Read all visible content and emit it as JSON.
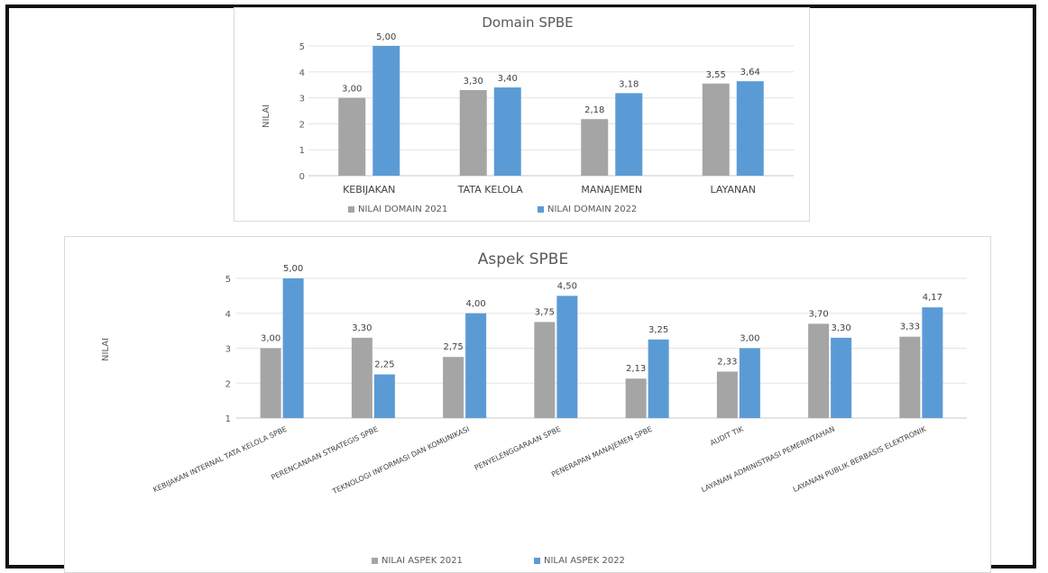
{
  "chart_data": [
    {
      "type": "bar",
      "title": "Domain SPBE",
      "ylabel": "NILAI",
      "xlabel": "",
      "ylim": [
        0,
        5
      ],
      "yticks": [
        "0",
        "1",
        "2",
        "3",
        "4",
        "5"
      ],
      "grid": true,
      "legend_position": "bottom",
      "categories": [
        "KEBIJAKAN",
        "TATA KELOLA",
        "MANAJEMEN",
        "LAYANAN"
      ],
      "series": [
        {
          "name": "NILAI DOMAIN 2021",
          "values": [
            3.0,
            3.3,
            2.18,
            3.55
          ],
          "labels": [
            "3,00",
            "3,30",
            "2,18",
            "3,55"
          ],
          "color": "#a5a5a5"
        },
        {
          "name": "NILAI DOMAIN 2022",
          "values": [
            5.0,
            3.4,
            3.18,
            3.64
          ],
          "labels": [
            "5,00",
            "3,40",
            "3,18",
            "3,64"
          ],
          "color": "#5b9bd5"
        }
      ]
    },
    {
      "type": "bar",
      "title": "Aspek SPBE",
      "ylabel": "NILAI",
      "xlabel": "",
      "ylim": [
        1,
        5
      ],
      "yticks": [
        "1",
        "2",
        "3",
        "4",
        "5"
      ],
      "grid": true,
      "legend_position": "bottom",
      "categories": [
        "KEBIJAKAN INTERNAL TATA KELOLA SPBE",
        "PERENCANAAN STRATEGIS SPBE",
        "TEKNOLOGI INFORMASI DAN KOMUNIKASI",
        "PENYELENGGARAAN SPBE",
        "PENERAPAN MANAJEMEN SPBE",
        "AUDIT TIK",
        "LAYANAN ADMINISTRASI PEMERINTAHAN",
        "LAYANAN PUBLIK BERBASIS ELEKTRONIK"
      ],
      "series": [
        {
          "name": "NILAI ASPEK 2021",
          "values": [
            3.0,
            3.3,
            2.75,
            3.75,
            2.13,
            2.33,
            3.7,
            3.33
          ],
          "labels": [
            "3,00",
            "3,30",
            "2,75",
            "3,75",
            "2,13",
            "2,33",
            "3,70",
            "3,33"
          ],
          "color": "#a5a5a5"
        },
        {
          "name": "NILAI ASPEK 2022",
          "values": [
            5.0,
            2.25,
            4.0,
            4.5,
            3.25,
            3.0,
            3.3,
            4.17
          ],
          "labels": [
            "5,00",
            "2,25",
            "4,00",
            "4,50",
            "3,25",
            "3,00",
            "3,30",
            "4,17"
          ],
          "color": "#5b9bd5"
        }
      ]
    }
  ]
}
